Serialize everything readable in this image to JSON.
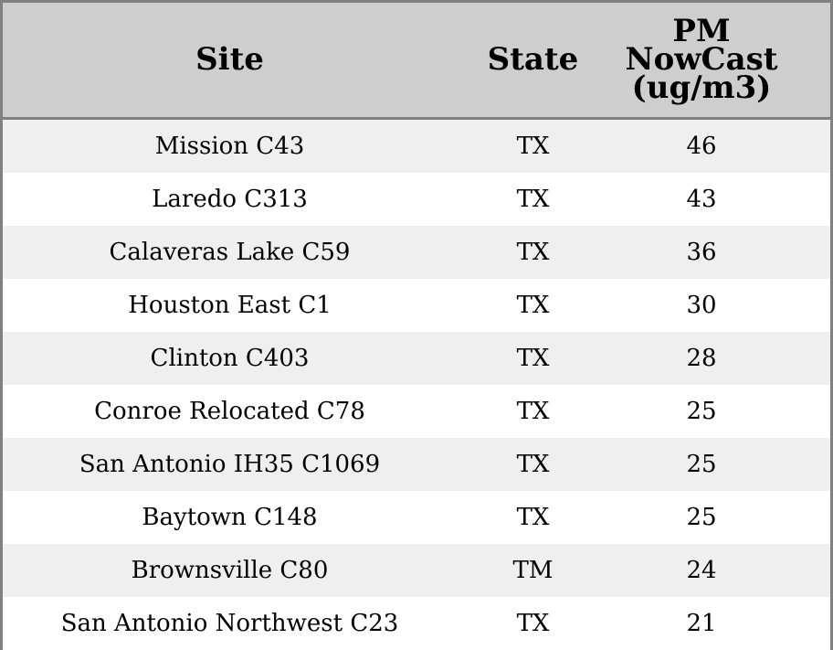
{
  "chart_data": {
    "type": "table",
    "columns": [
      "Site",
      "State",
      "PM NowCast (ug/m3)"
    ],
    "header_lines": {
      "site": [
        "Site"
      ],
      "state": [
        "State"
      ],
      "pm": [
        "PM",
        "NowCast",
        "(ug/m3)"
      ]
    },
    "rows": [
      {
        "site": "Mission C43",
        "state": "TX",
        "pm": "46"
      },
      {
        "site": "Laredo C313",
        "state": "TX",
        "pm": "43"
      },
      {
        "site": "Calaveras Lake C59",
        "state": "TX",
        "pm": "36"
      },
      {
        "site": "Houston East C1",
        "state": "TX",
        "pm": "30"
      },
      {
        "site": "Clinton C403",
        "state": "TX",
        "pm": "28"
      },
      {
        "site": "Conroe Relocated C78",
        "state": "TX",
        "pm": "25"
      },
      {
        "site": "San Antonio IH35 C1069",
        "state": "TX",
        "pm": "25"
      },
      {
        "site": "Baytown C148",
        "state": "TX",
        "pm": "25"
      },
      {
        "site": "Brownsville C80",
        "state": "TM",
        "pm": "24"
      },
      {
        "site": "San Antonio Northwest C23",
        "state": "TX",
        "pm": "21"
      }
    ]
  },
  "colors": {
    "header_background": "#cecece",
    "row_shaded": "#efefef",
    "row_plain": "#ffffff",
    "border": "#808080"
  }
}
